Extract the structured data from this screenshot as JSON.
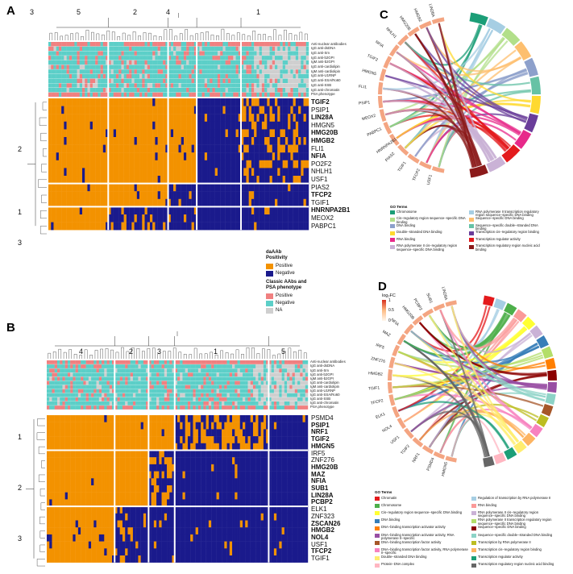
{
  "panels": {
    "A": "A",
    "B": "B",
    "C": "C",
    "D": "D"
  },
  "colors": {
    "positive": "#F39200",
    "negative": "#1A1A8C",
    "ann_pos": "#F08080",
    "ann_neg": "#5CCFC8",
    "na": "#CFCFCF"
  },
  "annotations": [
    "Anti-nuclear antibodies",
    "IgG anti-dsDNA",
    "IgG anti-Sm",
    "IgG anti-b2GPI",
    "IgM anti-b2GPI",
    "IgG anti-cardiolipin",
    "IgM anti-cardiolipin",
    "IgG anti-U1RNP",
    "IgG anti-SSA/Ro60",
    "IgG anti-SSB",
    "IgG anti-chromatin",
    "PSA phenotype"
  ],
  "panelA": {
    "col_clusters": [
      "3",
      "5",
      "2",
      "4",
      "1"
    ],
    "row_clusters": [
      "2",
      "1",
      "3"
    ],
    "genes": [
      {
        "n": "TGIF2",
        "b": true
      },
      {
        "n": "PSIP1",
        "b": false
      },
      {
        "n": "LIN28A",
        "b": true
      },
      {
        "n": "HMGN5",
        "b": false
      },
      {
        "n": "HMG20B",
        "b": true
      },
      {
        "n": "HMGB2",
        "b": true
      },
      {
        "n": "FLI1",
        "b": false
      },
      {
        "n": "NFIA",
        "b": true
      },
      {
        "n": "PO2F2",
        "b": false
      },
      {
        "n": "NHLH1",
        "b": false
      },
      {
        "n": "USF1",
        "b": false
      },
      {
        "n": "PIAS2",
        "b": false
      },
      {
        "n": "TFCP2",
        "b": true
      },
      {
        "n": "TGIF1",
        "b": false
      },
      {
        "n": "HNRNPA2B1",
        "b": true
      },
      {
        "n": "MEOX2",
        "b": false
      },
      {
        "n": "PABPC1",
        "b": false
      }
    ]
  },
  "panelB": {
    "col_clusters": [
      "4",
      "2",
      "3",
      "1",
      "5"
    ],
    "row_clusters": [
      "1",
      "2",
      "3"
    ],
    "genes": [
      {
        "n": "PSMD4",
        "b": false
      },
      {
        "n": "PSIP1",
        "b": true
      },
      {
        "n": "NRF1",
        "b": true
      },
      {
        "n": "TGIF2",
        "b": true
      },
      {
        "n": "HMGN5",
        "b": true
      },
      {
        "n": "IRF5",
        "b": false
      },
      {
        "n": "ZNF276",
        "b": false
      },
      {
        "n": "HMG20B",
        "b": true
      },
      {
        "n": "MAZ",
        "b": true
      },
      {
        "n": "NFIA",
        "b": true
      },
      {
        "n": "SUB1",
        "b": true
      },
      {
        "n": "LIN28A",
        "b": true
      },
      {
        "n": "PCBP2",
        "b": true
      },
      {
        "n": "ELK1",
        "b": false
      },
      {
        "n": "ZNF323",
        "b": false
      },
      {
        "n": "ZSCAN26",
        "b": true
      },
      {
        "n": "HMGB2",
        "b": true
      },
      {
        "n": "NOL4",
        "b": true
      },
      {
        "n": "USF1",
        "b": false
      },
      {
        "n": "TFCP2",
        "b": true
      },
      {
        "n": "TGIF1",
        "b": false
      }
    ]
  },
  "legend": {
    "daab_title": "daAAb\nPositivity",
    "daab_items": [
      "Positive",
      "Negative"
    ],
    "classic_title": "Classic AAbs and\nPSA phenotype",
    "classic_items": [
      "Positive",
      "Negative",
      "NA"
    ]
  },
  "panelC": {
    "labels": [
      "USF1",
      "TFCP2",
      "TGIF1",
      "PIAS2",
      "HNRNPA2B1",
      "PABPC1",
      "MEOX2",
      "PSIP1",
      "FLI1",
      "HMGN5",
      "TGIF2",
      "NFIA",
      "NHLH1",
      "HMG20B",
      "HMGB2",
      "LIN28A"
    ],
    "go_title": "GO Terms",
    "go_terms": [
      {
        "t": "Chromosome",
        "c": "#1B9E77"
      },
      {
        "t": "RNA polymerase II transcription regulatory region sequence−specific DNA binding",
        "c": "#A6CEE3"
      },
      {
        "t": "Cis−regulatory region sequence−specific DNA binding",
        "c": "#B2DF8A"
      },
      {
        "t": "Sequence−specific DNA binding",
        "c": "#FDBF6F"
      },
      {
        "t": "DNA binding",
        "c": "#8DA0CB"
      },
      {
        "t": "Sequence−specific double−stranded DNA binding",
        "c": "#66C2A5"
      },
      {
        "t": "Double−stranded DNA binding",
        "c": "#FFD92F"
      },
      {
        "t": "Transcription cis−regulatory region binding",
        "c": "#6A3D9A"
      },
      {
        "t": "RNA binding",
        "c": "#E7298A"
      },
      {
        "t": "Transcription regulator activity",
        "c": "#E31A1C"
      },
      {
        "t": "RNA polymerase II cis−regulatory region sequence−specific DNA binding",
        "c": "#CAB2D6"
      },
      {
        "t": "Transcription regulatory region nucleic acid binding",
        "c": "#8B1A1A"
      }
    ]
  },
  "panelD": {
    "labels": [
      "HMGN5",
      "PSMD4",
      "NRF1",
      "TGIF2",
      "USF1",
      "NOL4",
      "ELK1",
      "TFCP2",
      "TGIF1",
      "HMGB2",
      "ZNF276",
      "IRF5",
      "MAZ",
      "NFIA",
      "HMG20B",
      "PCBP2",
      "SUB1",
      "LIN28A"
    ],
    "scale_title": "log₂FC",
    "scale_ticks": [
      "1",
      "0.5",
      "0"
    ],
    "go_title": "GO Terms",
    "go_terms": [
      {
        "t": "Chromatin",
        "c": "#E41A1C"
      },
      {
        "t": "Regulation of transcription by RNA polymerase II",
        "c": "#A6CEE3"
      },
      {
        "t": "Chromosome",
        "c": "#4DAF4A"
      },
      {
        "t": "RNA binding",
        "c": "#FB9A99"
      },
      {
        "t": "Cis−regulatory region sequence−specific DNA binding",
        "c": "#FFFF33"
      },
      {
        "t": "RNA polymerase II cis−regulatory region sequence−specific DNA binding",
        "c": "#CAB2D6"
      },
      {
        "t": "DNA binding",
        "c": "#377EB8"
      },
      {
        "t": "RNA polymerase II transcription regulatory region sequence−specific DNA binding",
        "c": "#B3DE69"
      },
      {
        "t": "DNA−binding transcription activator activity",
        "c": "#FF7F00"
      },
      {
        "t": "Sequence−specific DNA binding",
        "c": "#8B0000"
      },
      {
        "t": "DNA−binding transcription activator activity, RNA polymerase II−specific",
        "c": "#984EA3"
      },
      {
        "t": "Sequence−specific double−stranded DNA binding",
        "c": "#8DD3C7"
      },
      {
        "t": "DNA−binding transcription factor activity",
        "c": "#A65628"
      },
      {
        "t": "Transcription by RNA polymerase II",
        "c": "#BCBD22"
      },
      {
        "t": "DNA−binding transcription factor activity, RNA polymerase II−specific",
        "c": "#F781BF"
      },
      {
        "t": "Transcription cis−regulatory region binding",
        "c": "#FDB462"
      },
      {
        "t": "Double−stranded DNA binding",
        "c": "#FFED6F"
      },
      {
        "t": "Transcription regulator activity",
        "c": "#1B9E77"
      },
      {
        "t": "Protein−DNA complex",
        "c": "#FFB6C1"
      },
      {
        "t": "Transcription regulatory region nucleic acid binding",
        "c": "#666666"
      }
    ]
  }
}
